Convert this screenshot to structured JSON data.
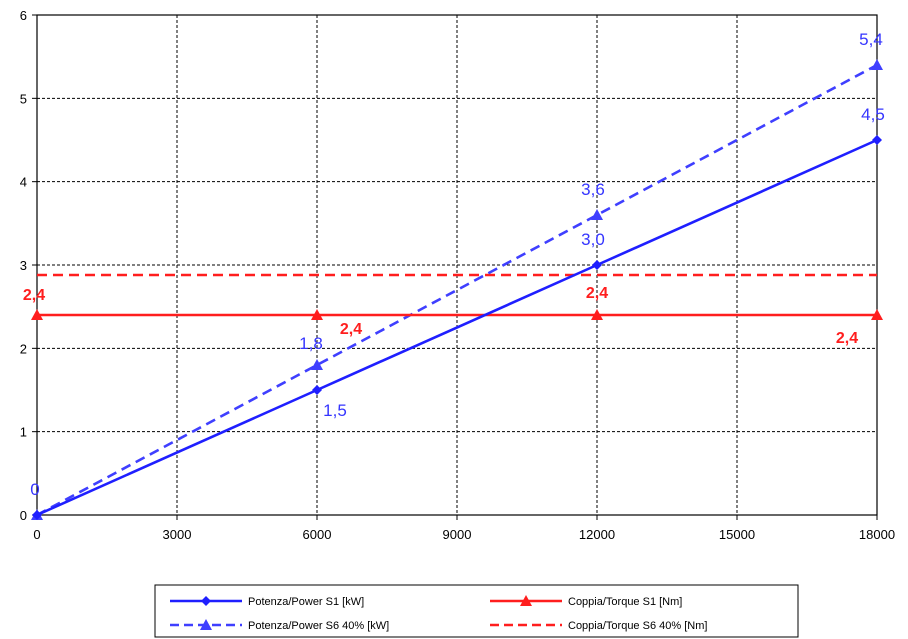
{
  "chart_data": {
    "type": "line",
    "xlim": [
      0,
      18000
    ],
    "ylim": [
      0,
      6
    ],
    "x_ticks": [
      "0",
      "3000",
      "6000",
      "9000",
      "12000",
      "15000",
      "18000"
    ],
    "y_ticks": [
      "0",
      "1",
      "2",
      "3",
      "4",
      "5",
      "6"
    ],
    "grid": true,
    "legend_position": "bottom",
    "series": [
      {
        "name": "Potenza/Power S1 [kW]",
        "color": "#1f1fff",
        "dash": "solid",
        "marker": "diamond",
        "x": [
          0,
          6000,
          12000,
          18000
        ],
        "y": [
          0,
          1.5,
          3.0,
          4.5
        ]
      },
      {
        "name": "Coppia/Torque S1 [Nm]",
        "color": "#ff1e1e",
        "dash": "solid",
        "marker": "triangle",
        "x": [
          0,
          6000,
          12000,
          18000
        ],
        "y": [
          2.4,
          2.4,
          2.4,
          2.4
        ]
      },
      {
        "name": "Potenza/Power S6 40% [kW]",
        "color": "#3f3fff",
        "dash": "dashed",
        "marker": "triangle",
        "x": [
          0,
          6000,
          12000,
          18000
        ],
        "y": [
          0,
          1.8,
          3.6,
          5.4
        ]
      },
      {
        "name": "Coppia/Torque S6 40% [Nm]",
        "color": "#ff1e1e",
        "dash": "dashed",
        "marker": "none",
        "x": [
          0,
          18000
        ],
        "y": [
          2.88,
          2.88
        ]
      }
    ],
    "annotations": [
      {
        "text": "0",
        "x": 0,
        "y": 0,
        "color": "blue"
      },
      {
        "text": "1,5",
        "x": 6000,
        "y": 1.5,
        "color": "blue"
      },
      {
        "text": "1,8",
        "x": 6000,
        "y": 1.8,
        "color": "blue"
      },
      {
        "text": "3,0",
        "x": 12000,
        "y": 3.0,
        "color": "blue"
      },
      {
        "text": "3,6",
        "x": 12000,
        "y": 3.6,
        "color": "blue"
      },
      {
        "text": "4,5",
        "x": 18000,
        "y": 4.5,
        "color": "blue"
      },
      {
        "text": "5,4",
        "x": 18000,
        "y": 5.4,
        "color": "blue"
      },
      {
        "text": "2,4",
        "x": 0,
        "y": 2.4,
        "color": "red"
      },
      {
        "text": "2,4",
        "x": 6000,
        "y": 2.4,
        "color": "red"
      },
      {
        "text": "2,4",
        "x": 12000,
        "y": 2.4,
        "color": "red"
      },
      {
        "text": "2,4",
        "x": 18000,
        "y": 2.4,
        "color": "red"
      }
    ]
  }
}
